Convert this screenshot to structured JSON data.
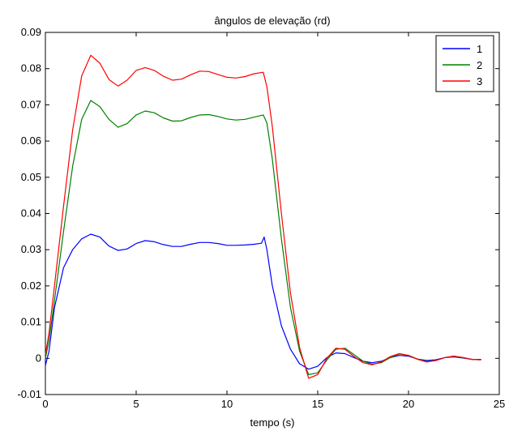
{
  "chart_data": {
    "type": "line",
    "title": "ângulos de elevação (rd)",
    "xlabel": "tempo (s)",
    "ylabel": "",
    "xlim": [
      0,
      25
    ],
    "ylim": [
      -0.01,
      0.09
    ],
    "xticks": [
      "0",
      "5",
      "10",
      "15",
      "20",
      "25"
    ],
    "yticks": [
      "-0.01",
      "0",
      "0.01",
      "0.02",
      "0.03",
      "0.04",
      "0.05",
      "0.06",
      "0.07",
      "0.08",
      "0.09"
    ],
    "grid": false,
    "legend_position": "top-right",
    "series": [
      {
        "name": "1",
        "color": "#0000ff",
        "x": [
          0,
          0.2,
          0.5,
          1,
          1.5,
          2,
          2.5,
          3,
          3.5,
          4,
          4.5,
          5,
          5.5,
          6,
          6.5,
          7,
          7.5,
          8,
          8.5,
          9,
          9.5,
          10,
          10.5,
          11,
          11.5,
          11.9,
          12.05,
          12.2,
          12.5,
          13,
          13.5,
          14,
          14.5,
          15,
          15.5,
          16,
          16.5,
          17,
          17.5,
          18,
          18.5,
          19,
          19.5,
          20,
          20.5,
          21,
          21.5,
          22,
          22.5,
          23,
          23.5,
          24
        ],
        "y": [
          -0.002,
          0.002,
          0.014,
          0.025,
          0.03,
          0.033,
          0.0343,
          0.0335,
          0.031,
          0.0298,
          0.0302,
          0.0317,
          0.0325,
          0.0322,
          0.0314,
          0.0309,
          0.0309,
          0.0315,
          0.032,
          0.032,
          0.0317,
          0.0312,
          0.0312,
          0.0313,
          0.0315,
          0.0318,
          0.0335,
          0.03,
          0.02,
          0.009,
          0.0025,
          -0.0015,
          -0.003,
          -0.0022,
          0.0002,
          0.0015,
          0.0013,
          0.0002,
          -0.0008,
          -0.0012,
          -0.0008,
          0.0002,
          0.0008,
          0.0006,
          -0.0002,
          -0.0006,
          -0.0004,
          0.0002,
          0.0004,
          0.0001,
          -0.0003,
          -0.0003
        ]
      },
      {
        "name": "2",
        "color": "#008000",
        "x": [
          0,
          0.2,
          0.5,
          1,
          1.5,
          2,
          2.5,
          3,
          3.5,
          4,
          4.5,
          5,
          5.5,
          6,
          6.5,
          7,
          7.5,
          8,
          8.5,
          9,
          9.5,
          10,
          10.5,
          11,
          11.5,
          12,
          12.2,
          12.5,
          13,
          13.5,
          14,
          14.5,
          15,
          15.5,
          16,
          16.5,
          17,
          17.5,
          18,
          18.5,
          19,
          19.5,
          20,
          20.5,
          21,
          21.5,
          22,
          22.5,
          23,
          23.5,
          24
        ],
        "y": [
          0.0,
          0.005,
          0.016,
          0.035,
          0.053,
          0.066,
          0.0712,
          0.0695,
          0.066,
          0.0638,
          0.0648,
          0.0672,
          0.0683,
          0.0678,
          0.0664,
          0.0655,
          0.0656,
          0.0665,
          0.0672,
          0.0673,
          0.0668,
          0.0661,
          0.0658,
          0.066,
          0.0666,
          0.0672,
          0.065,
          0.055,
          0.033,
          0.014,
          0.002,
          -0.0045,
          -0.004,
          -0.0005,
          0.0025,
          0.0028,
          0.001,
          -0.0008,
          -0.0016,
          -0.0012,
          0.0002,
          0.0012,
          0.0008,
          -0.0002,
          -0.0009,
          -0.0006,
          0.0002,
          0.0006,
          0.0002,
          -0.0003,
          -0.0004
        ]
      },
      {
        "name": "3",
        "color": "#ff0000",
        "x": [
          0,
          0.2,
          0.5,
          1,
          1.5,
          2,
          2.5,
          3,
          3.5,
          4,
          4.5,
          5,
          5.5,
          6,
          6.5,
          7,
          7.5,
          8,
          8.5,
          9,
          9.5,
          10,
          10.5,
          11,
          11.5,
          12,
          12.2,
          12.5,
          13,
          13.5,
          14,
          14.5,
          15,
          15.5,
          16,
          16.5,
          17,
          17.5,
          18,
          18.5,
          19,
          19.5,
          20,
          20.5,
          21,
          21.5,
          22,
          22.5,
          23,
          23.5,
          24
        ],
        "y": [
          0.001,
          0.007,
          0.02,
          0.042,
          0.063,
          0.078,
          0.0837,
          0.0815,
          0.077,
          0.0752,
          0.0768,
          0.0795,
          0.0803,
          0.0795,
          0.0779,
          0.0768,
          0.0771,
          0.0783,
          0.0793,
          0.0792,
          0.0784,
          0.0776,
          0.0774,
          0.0778,
          0.0786,
          0.079,
          0.075,
          0.064,
          0.04,
          0.018,
          0.003,
          -0.0055,
          -0.0045,
          0.0,
          0.0028,
          0.0025,
          0.0005,
          -0.0012,
          -0.0018,
          -0.001,
          0.0005,
          0.0013,
          0.0008,
          -0.0003,
          -0.001,
          -0.0006,
          0.0002,
          0.0006,
          0.0002,
          -0.0003,
          -0.0004
        ]
      }
    ]
  }
}
